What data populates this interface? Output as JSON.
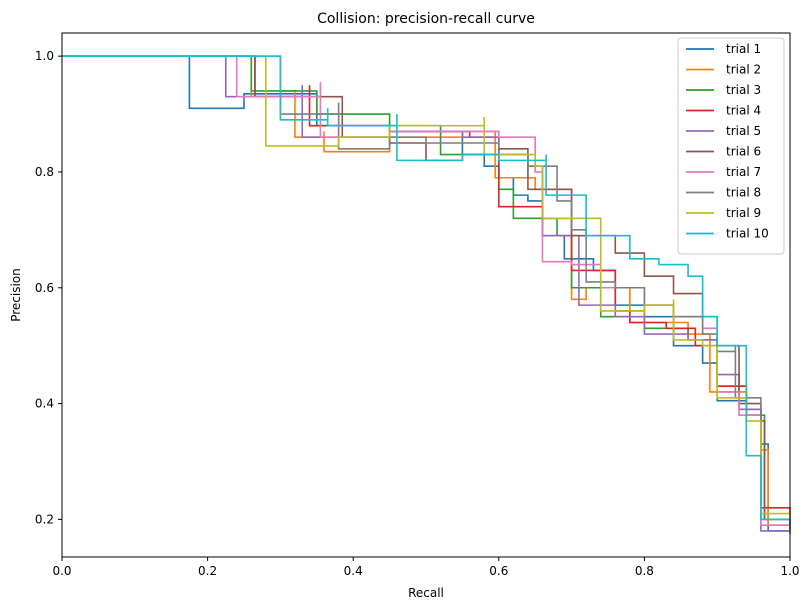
{
  "chart_data": {
    "type": "line",
    "title": "Collision: precision-recall curve",
    "xlabel": "Recall",
    "ylabel": "Precision",
    "xlim": [
      0,
      1
    ],
    "ylim": [
      0.135,
      1.04
    ],
    "xticks": [
      0.0,
      0.2,
      0.4,
      0.6,
      0.8,
      1.0
    ],
    "xtick_labels": [
      "0.0",
      "0.2",
      "0.4",
      "0.6",
      "0.8",
      "1.0"
    ],
    "yticks": [
      0.2,
      0.4,
      0.6,
      0.8,
      1.0
    ],
    "ytick_labels": [
      "0.2",
      "0.4",
      "0.6",
      "0.8",
      "1.0"
    ],
    "grid": false,
    "legend_position": "top-right",
    "series": [
      {
        "name": "trial 1",
        "color": "#1f77b4",
        "x": [
          0,
          0.175,
          0.175,
          0.25,
          0.25,
          0.35,
          0.45,
          0.55,
          0.58,
          0.6,
          0.62,
          0.62,
          0.64,
          0.66,
          0.66,
          0.69,
          0.69,
          0.73,
          0.76,
          0.76,
          0.8,
          0.84,
          0.84,
          0.88,
          0.9,
          0.9,
          0.94,
          0.96,
          0.97,
          0.97,
          1.0
        ],
        "y": [
          1.0,
          1.0,
          0.91,
          0.935,
          0.935,
          0.88,
          0.87,
          0.83,
          0.81,
          0.79,
          0.77,
          0.76,
          0.75,
          0.74,
          0.69,
          0.68,
          0.65,
          0.63,
          0.61,
          0.57,
          0.55,
          0.53,
          0.5,
          0.47,
          0.44,
          0.405,
          0.38,
          0.33,
          0.3,
          0.18,
          0.175
        ]
      },
      {
        "name": "trial 2",
        "color": "#ff7f0e",
        "x": [
          0,
          0.26,
          0.26,
          0.3,
          0.32,
          0.36,
          0.36,
          0.45,
          0.55,
          0.595,
          0.595,
          0.65,
          0.7,
          0.7,
          0.72,
          0.78,
          0.8,
          0.86,
          0.89,
          0.89,
          0.94,
          0.96,
          0.97,
          0.97,
          1.0
        ],
        "y": [
          1.0,
          1.0,
          0.93,
          0.94,
          0.86,
          0.87,
          0.835,
          0.86,
          0.87,
          0.87,
          0.79,
          0.77,
          0.76,
          0.58,
          0.6,
          0.56,
          0.54,
          0.52,
          0.5,
          0.42,
          0.38,
          0.32,
          0.3,
          0.19,
          0.175
        ]
      },
      {
        "name": "trial 3",
        "color": "#2ca02c",
        "x": [
          0,
          0.26,
          0.26,
          0.35,
          0.45,
          0.52,
          0.52,
          0.6,
          0.62,
          0.62,
          0.68,
          0.7,
          0.7,
          0.74,
          0.78,
          0.8,
          0.86,
          0.9,
          0.9,
          0.94,
          0.965,
          0.965,
          1.0
        ],
        "y": [
          1.0,
          1.0,
          0.94,
          0.9,
          0.88,
          0.85,
          0.83,
          0.77,
          0.74,
          0.72,
          0.69,
          0.67,
          0.6,
          0.55,
          0.54,
          0.53,
          0.51,
          0.46,
          0.43,
          0.38,
          0.33,
          0.2,
          0.18
        ]
      },
      {
        "name": "trial 4",
        "color": "#d62728",
        "x": [
          0,
          0.265,
          0.265,
          0.34,
          0.34,
          0.45,
          0.56,
          0.6,
          0.6,
          0.66,
          0.7,
          0.7,
          0.76,
          0.78,
          0.83,
          0.87,
          0.9,
          0.9,
          0.94,
          0.96,
          0.96,
          1.0
        ],
        "y": [
          1.0,
          1.0,
          0.93,
          0.95,
          0.88,
          0.87,
          0.86,
          0.79,
          0.74,
          0.72,
          0.7,
          0.63,
          0.56,
          0.54,
          0.53,
          0.5,
          0.47,
          0.43,
          0.39,
          0.34,
          0.22,
          0.19
        ]
      },
      {
        "name": "trial 5",
        "color": "#9467bd",
        "x": [
          0,
          0.225,
          0.225,
          0.33,
          0.33,
          0.45,
          0.55,
          0.6,
          0.64,
          0.66,
          0.66,
          0.71,
          0.71,
          0.76,
          0.8,
          0.86,
          0.9,
          0.93,
          0.93,
          0.96,
          0.96,
          1.0
        ],
        "y": [
          1.0,
          1.0,
          0.93,
          0.95,
          0.86,
          0.87,
          0.86,
          0.83,
          0.81,
          0.78,
          0.69,
          0.62,
          0.57,
          0.55,
          0.52,
          0.51,
          0.45,
          0.4,
          0.39,
          0.33,
          0.18,
          0.18
        ]
      },
      {
        "name": "trial 6",
        "color": "#8c564b",
        "x": [
          0,
          0.265,
          0.265,
          0.385,
          0.385,
          0.45,
          0.5,
          0.55,
          0.6,
          0.64,
          0.64,
          0.7,
          0.76,
          0.8,
          0.84,
          0.88,
          0.9,
          0.93,
          0.93,
          0.96,
          0.965,
          0.965,
          1.0
        ],
        "y": [
          1.0,
          1.0,
          0.93,
          0.92,
          0.86,
          0.85,
          0.82,
          0.83,
          0.84,
          0.8,
          0.77,
          0.69,
          0.66,
          0.62,
          0.59,
          0.55,
          0.5,
          0.49,
          0.4,
          0.37,
          0.3,
          0.2,
          0.2
        ]
      },
      {
        "name": "trial 7",
        "color": "#e377c2",
        "x": [
          0,
          0.24,
          0.24,
          0.355,
          0.355,
          0.45,
          0.6,
          0.65,
          0.66,
          0.66,
          0.7,
          0.74,
          0.8,
          0.84,
          0.88,
          0.9,
          0.9,
          0.93,
          0.96,
          0.96,
          1.0
        ],
        "y": [
          1.0,
          1.0,
          0.93,
          0.955,
          0.86,
          0.87,
          0.86,
          0.8,
          0.77,
          0.645,
          0.64,
          0.6,
          0.57,
          0.55,
          0.53,
          0.5,
          0.42,
          0.38,
          0.33,
          0.19,
          0.19
        ]
      },
      {
        "name": "trial 8",
        "color": "#7f7f7f",
        "x": [
          0,
          0.3,
          0.3,
          0.38,
          0.38,
          0.45,
          0.5,
          0.6,
          0.64,
          0.68,
          0.7,
          0.72,
          0.72,
          0.76,
          0.8,
          0.84,
          0.88,
          0.9,
          0.925,
          0.925,
          0.96,
          0.96,
          1.0
        ],
        "y": [
          1.0,
          1.0,
          0.9,
          0.92,
          0.84,
          0.86,
          0.85,
          0.83,
          0.81,
          0.75,
          0.7,
          0.69,
          0.61,
          0.6,
          0.57,
          0.55,
          0.52,
          0.49,
          0.5,
          0.41,
          0.36,
          0.2,
          0.18
        ]
      },
      {
        "name": "trial 9",
        "color": "#bcbd22",
        "x": [
          0,
          0.28,
          0.28,
          0.38,
          0.45,
          0.58,
          0.58,
          0.65,
          0.66,
          0.66,
          0.74,
          0.74,
          0.8,
          0.84,
          0.84,
          0.88,
          0.9,
          0.9,
          0.94,
          0.96,
          0.96,
          1.0
        ],
        "y": [
          1.0,
          1.0,
          0.845,
          0.86,
          0.88,
          0.895,
          0.83,
          0.81,
          0.79,
          0.72,
          0.65,
          0.56,
          0.57,
          0.58,
          0.51,
          0.5,
          0.48,
          0.41,
          0.37,
          0.33,
          0.21,
          0.2
        ]
      },
      {
        "name": "trial 10",
        "color": "#17becf",
        "x": [
          0,
          0.3,
          0.3,
          0.365,
          0.365,
          0.46,
          0.46,
          0.55,
          0.6,
          0.665,
          0.665,
          0.72,
          0.72,
          0.78,
          0.82,
          0.86,
          0.88,
          0.9,
          0.94,
          0.94,
          0.96,
          0.96,
          1.0
        ],
        "y": [
          1.0,
          1.0,
          0.89,
          0.91,
          0.88,
          0.9,
          0.82,
          0.83,
          0.82,
          0.83,
          0.76,
          0.74,
          0.69,
          0.65,
          0.64,
          0.62,
          0.55,
          0.5,
          0.45,
          0.31,
          0.31,
          0.2,
          0.18
        ]
      }
    ]
  }
}
